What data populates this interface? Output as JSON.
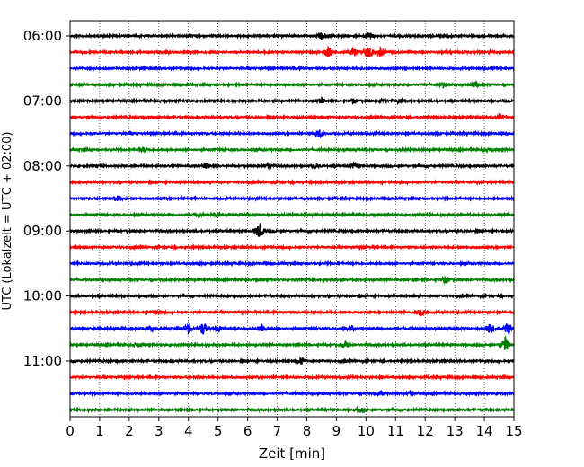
{
  "chart_data": {
    "type": "line",
    "title": "",
    "xlabel": "Zeit  [min]",
    "ylabel": "UTC (Lokalzeit = UTC + 02:00)",
    "xlim": [
      0,
      15
    ],
    "x_ticks": [
      "0",
      "1",
      "2",
      "3",
      "4",
      "5",
      "6",
      "7",
      "8",
      "9",
      "10",
      "11",
      "12",
      "13",
      "14",
      "15"
    ],
    "y_ticks": [
      "06:00",
      "07:00",
      "08:00",
      "09:00",
      "10:00",
      "11:00"
    ],
    "grid": "x-dotted",
    "trace_interval_min": 15,
    "colors_cycle": [
      "#000000",
      "#ff0000",
      "#0000ff",
      "#008000"
    ],
    "traces": [
      {
        "start": "06:00",
        "color": "#000000",
        "events": [
          [
            8.5,
            0.9
          ],
          [
            10.1,
            1.1
          ]
        ]
      },
      {
        "start": "06:15",
        "color": "#ff0000",
        "events": [
          [
            8.7,
            1.6
          ],
          [
            9.6,
            1.3
          ],
          [
            10.1,
            2.0
          ],
          [
            10.5,
            1.2
          ]
        ]
      },
      {
        "start": "06:30",
        "color": "#0000ff",
        "events": []
      },
      {
        "start": "06:45",
        "color": "#008000",
        "events": [
          [
            12.6,
            0.8
          ],
          [
            13.7,
            0.8
          ]
        ]
      },
      {
        "start": "07:00",
        "color": "#000000",
        "events": [
          [
            8.5,
            0.8
          ],
          [
            9.6,
            0.6
          ],
          [
            10.6,
            0.6
          ],
          [
            11.1,
            0.6
          ]
        ]
      },
      {
        "start": "07:15",
        "color": "#ff0000",
        "events": [
          [
            14.5,
            0.6
          ]
        ]
      },
      {
        "start": "07:30",
        "color": "#0000ff",
        "events": [
          [
            8.4,
            1.3
          ]
        ]
      },
      {
        "start": "07:45",
        "color": "#008000",
        "events": [
          [
            2.5,
            0.7
          ],
          [
            14.0,
            0.5
          ]
        ]
      },
      {
        "start": "08:00",
        "color": "#000000",
        "events": [
          [
            4.6,
            0.9
          ],
          [
            6.7,
            0.7
          ],
          [
            8.3,
            0.7
          ],
          [
            9.6,
            0.8
          ]
        ]
      },
      {
        "start": "08:15",
        "color": "#ff0000",
        "events": []
      },
      {
        "start": "08:30",
        "color": "#0000ff",
        "events": [
          [
            1.6,
            1.2
          ]
        ]
      },
      {
        "start": "08:45",
        "color": "#008000",
        "events": [
          [
            4.3,
            0.6
          ],
          [
            5.0,
            0.6
          ]
        ]
      },
      {
        "start": "09:00",
        "color": "#000000",
        "events": [
          [
            6.4,
            2.4
          ]
        ]
      },
      {
        "start": "09:15",
        "color": "#ff0000",
        "events": []
      },
      {
        "start": "09:30",
        "color": "#0000ff",
        "events": []
      },
      {
        "start": "09:45",
        "color": "#008000",
        "events": [
          [
            12.7,
            1.0
          ]
        ]
      },
      {
        "start": "10:00",
        "color": "#000000",
        "events": []
      },
      {
        "start": "10:15",
        "color": "#ff0000",
        "events": [
          [
            2.9,
            0.6
          ],
          [
            11.8,
            0.8
          ],
          [
            12.0,
            0.6
          ]
        ]
      },
      {
        "start": "10:30",
        "color": "#0000ff",
        "events": [
          [
            2.7,
            0.8
          ],
          [
            4.0,
            1.2
          ],
          [
            4.5,
            2.0
          ],
          [
            5.0,
            1.0
          ],
          [
            6.5,
            1.6
          ],
          [
            9.5,
            0.6
          ],
          [
            14.2,
            1.6
          ],
          [
            14.8,
            1.8
          ]
        ]
      },
      {
        "start": "10:45",
        "color": "#008000",
        "events": [
          [
            2.3,
            0.6
          ],
          [
            9.3,
            0.7
          ],
          [
            14.7,
            2.4
          ]
        ]
      },
      {
        "start": "11:00",
        "color": "#000000",
        "events": [
          [
            7.8,
            1.0
          ]
        ]
      },
      {
        "start": "11:15",
        "color": "#ff0000",
        "events": []
      },
      {
        "start": "11:30",
        "color": "#0000ff",
        "events": [
          [
            10.5,
            0.8
          ],
          [
            11.5,
            0.6
          ]
        ]
      },
      {
        "start": "11:45",
        "color": "#008000",
        "events": [
          [
            9.8,
            0.7
          ]
        ]
      }
    ]
  }
}
